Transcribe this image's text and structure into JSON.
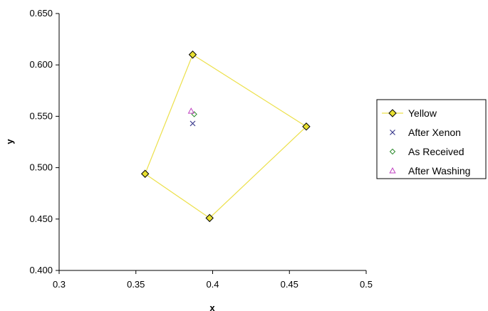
{
  "chart_data": {
    "type": "scatter",
    "title": "",
    "xlabel": "x",
    "ylabel": "y",
    "xlim": [
      0.3,
      0.5
    ],
    "ylim": [
      0.4,
      0.65
    ],
    "x_ticks": [
      0.3,
      0.35,
      0.4,
      0.45,
      0.5
    ],
    "x_tick_labels": [
      "0.3",
      "0.35",
      "0.4",
      "0.45",
      "0.5"
    ],
    "y_ticks": [
      0.4,
      0.45,
      0.5,
      0.55,
      0.6,
      0.65
    ],
    "y_tick_labels": [
      "0.400",
      "0.450",
      "0.500",
      "0.550",
      "0.600",
      "0.650"
    ],
    "grid": false,
    "legend_position": "right",
    "series": [
      {
        "name": "Yellow",
        "marker": "diamond",
        "color": "#e8e030",
        "line_color": "#ece04a",
        "line": true,
        "closed": true,
        "points": [
          [
            0.387,
            0.61
          ],
          [
            0.461,
            0.54
          ],
          [
            0.398,
            0.451
          ],
          [
            0.356,
            0.494
          ]
        ]
      },
      {
        "name": "After Xenon",
        "marker": "x",
        "color": "#3a3a8c",
        "line": false,
        "points": [
          [
            0.387,
            0.543
          ]
        ]
      },
      {
        "name": "As Received",
        "marker": "diamond-open",
        "color": "#2e8b2e",
        "line": false,
        "points": [
          [
            0.388,
            0.552
          ]
        ]
      },
      {
        "name": "After Washing",
        "marker": "triangle-open",
        "color": "#c040c0",
        "line": false,
        "points": [
          [
            0.386,
            0.555
          ]
        ]
      }
    ]
  }
}
